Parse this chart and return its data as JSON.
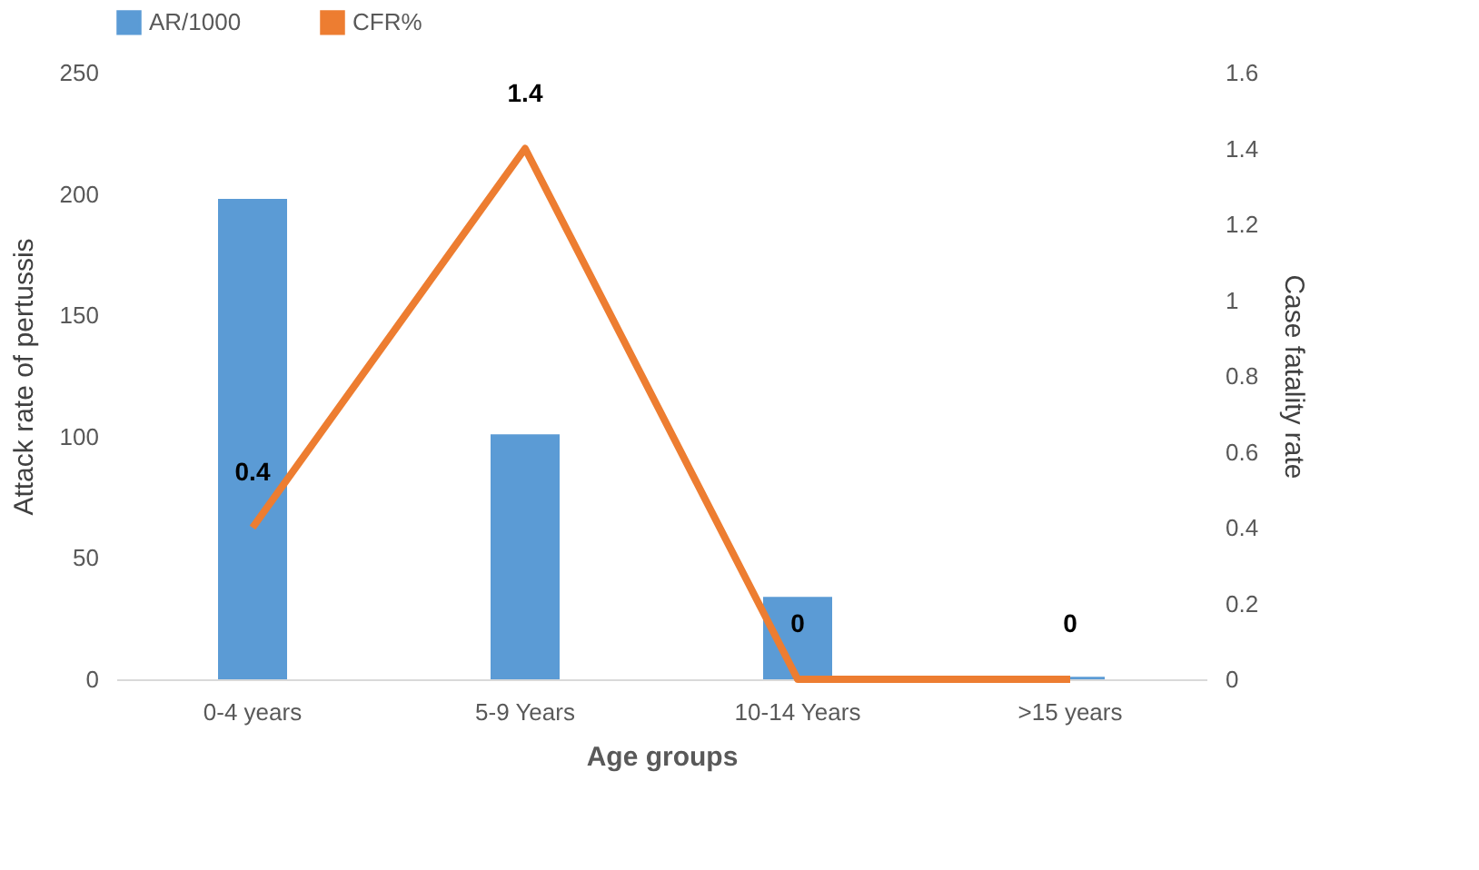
{
  "chart_data": {
    "type": "bar",
    "categories": [
      "0-4 years",
      "5-9 Years",
      "10-14 Years",
      ">15 years"
    ],
    "xlabel": "Age groups",
    "ylabel": "Attack rate of pertussis",
    "y2label": "Case fatality rate",
    "series": [
      {
        "name": "AR/1000",
        "color": "#5b9bd5",
        "values": [
          198,
          101,
          34,
          1
        ]
      },
      {
        "name": "CFR%",
        "type": "line",
        "axis": "y2",
        "color": "#ed7d31",
        "values": [
          0.4,
          1.4,
          0,
          0
        ],
        "value_labels": [
          "0.4",
          "1.4",
          "0",
          "0"
        ]
      }
    ],
    "ylim": [
      0,
      250
    ],
    "yticks": [
      0,
      50,
      100,
      150,
      200,
      250
    ],
    "y2lim": [
      0,
      1.6
    ],
    "y2ticks": [
      0,
      0.2,
      0.4,
      0.6,
      0.8,
      1,
      1.2,
      1.4,
      1.6
    ],
    "grid": false,
    "legend": "top"
  }
}
